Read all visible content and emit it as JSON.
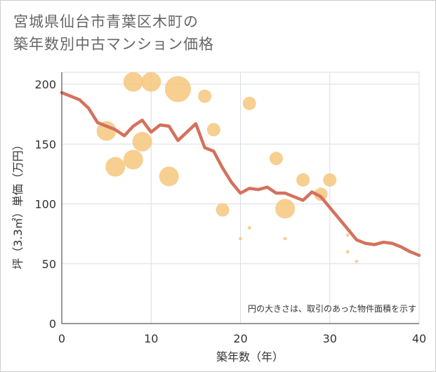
{
  "title": "宮城県仙台市青葉区木町の\n築年数別中古マンション価格",
  "chart_data": {
    "type": "scatter",
    "xlabel": "築年数（年）",
    "ylabel": "坪（3.3㎡）単価（万円）",
    "xlim": [
      0,
      40
    ],
    "ylim": [
      0,
      210
    ],
    "xticks": [
      0,
      10,
      20,
      30,
      40
    ],
    "yticks": [
      0,
      50,
      100,
      150,
      200
    ],
    "grid": true,
    "note": "円の大きさは、取引のあった物件面積を示す",
    "colors": {
      "bubble": "#f5c77e",
      "line": "#d4715d"
    },
    "bubbles": [
      {
        "x": 5,
        "y": 161,
        "size": 2
      },
      {
        "x": 6,
        "y": 131,
        "size": 2
      },
      {
        "x": 8,
        "y": 202,
        "size": 2
      },
      {
        "x": 8,
        "y": 137,
        "size": 2
      },
      {
        "x": 9,
        "y": 152,
        "size": 2
      },
      {
        "x": 10,
        "y": 202,
        "size": 2
      },
      {
        "x": 12,
        "y": 123,
        "size": 2
      },
      {
        "x": 13,
        "y": 196,
        "size": 3
      },
      {
        "x": 16,
        "y": 190,
        "size": 1
      },
      {
        "x": 17,
        "y": 162,
        "size": 1
      },
      {
        "x": 18,
        "y": 95,
        "size": 1
      },
      {
        "x": 21,
        "y": 184,
        "size": 1
      },
      {
        "x": 24,
        "y": 138,
        "size": 1
      },
      {
        "x": 25,
        "y": 96,
        "size": 2
      },
      {
        "x": 27,
        "y": 120,
        "size": 1
      },
      {
        "x": 29,
        "y": 108,
        "size": 1
      },
      {
        "x": 30,
        "y": 120,
        "size": 1
      },
      {
        "x": 20,
        "y": 71,
        "size": 0.2
      },
      {
        "x": 21,
        "y": 80,
        "size": 0.2
      },
      {
        "x": 25,
        "y": 71,
        "size": 0.25
      },
      {
        "x": 32,
        "y": 74,
        "size": 0.2
      },
      {
        "x": 32,
        "y": 60,
        "size": 0.2
      },
      {
        "x": 33,
        "y": 52,
        "size": 0.2
      }
    ],
    "trend": {
      "x": [
        0,
        1,
        2,
        3,
        4,
        5,
        6,
        7,
        8,
        9,
        10,
        11,
        12,
        13,
        14,
        15,
        16,
        17,
        18,
        19,
        20,
        21,
        22,
        23,
        24,
        25,
        26,
        27,
        28,
        29,
        30,
        31,
        32,
        33,
        34,
        35,
        36,
        37,
        38,
        39,
        40
      ],
      "y": [
        193,
        190,
        187,
        180,
        168,
        165,
        162,
        157,
        165,
        170,
        160,
        166,
        165,
        153,
        160,
        167,
        147,
        144,
        130,
        118,
        109,
        113,
        112,
        114,
        109,
        109,
        106,
        103,
        110,
        106,
        97,
        88,
        79,
        70,
        67,
        66,
        68,
        67,
        64,
        60,
        57
      ]
    }
  }
}
